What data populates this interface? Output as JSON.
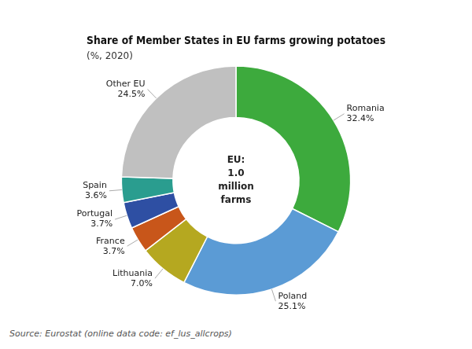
{
  "chart_data": {
    "type": "doughnut",
    "title": "Share of Member States in EU farms growing potatoes",
    "subtitle": "(%, 2020)",
    "annotations": [
      "EU:\n1.0\nmillion\nfarms",
      "Source: Eurostat (online data code: ef_lus_allcrops)"
    ],
    "categories": [
      "Romania",
      "Poland",
      "Lithuania",
      "France",
      "Portugal",
      "Spain",
      "Other EU"
    ],
    "values": [
      32.4,
      25.1,
      7.0,
      3.7,
      3.7,
      3.6,
      24.5
    ],
    "value_labels": [
      "32.4%",
      "25.1%",
      "7.0%",
      "3.7%",
      "3.7%",
      "3.6%",
      "24.5%"
    ],
    "colors": [
      "#3daa3d",
      "#5b9bd5",
      "#b5a820",
      "#c8561a",
      "#2e4fa3",
      "#2a9d8f",
      "#c0c0c0"
    ],
    "data_labels": true,
    "legend": false
  }
}
